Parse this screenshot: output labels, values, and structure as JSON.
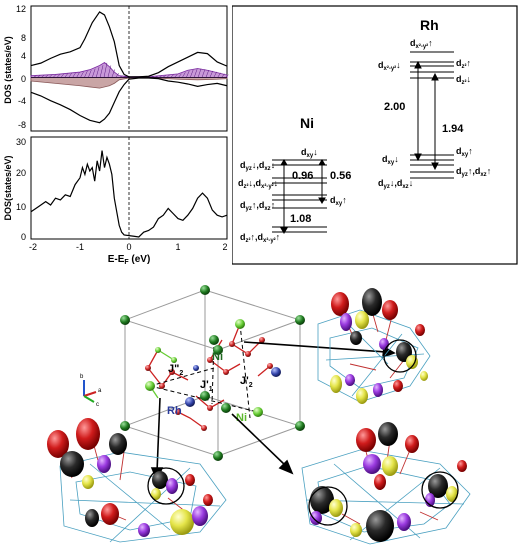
{
  "dos_top": {
    "ylabel": "DOS (states/eV)",
    "yticks": [
      "12",
      "8",
      "4",
      "0",
      "-4",
      "-8"
    ],
    "chart_data": {
      "type": "line",
      "x_range": [
        -2,
        2
      ],
      "y_range": [
        -9,
        12
      ],
      "series": [
        {
          "key": "total_up",
          "x": [
            -2,
            -1.8,
            -1.6,
            -1.4,
            -1.2,
            -1.0,
            -0.9,
            -0.75,
            -0.6,
            -0.5,
            -0.4,
            -0.3,
            -0.2,
            -0.1,
            0,
            0.2,
            0.4,
            0.6,
            0.8,
            1.0,
            1.2,
            1.4,
            1.6,
            1.8,
            2.0
          ],
          "y": [
            2.0,
            2.4,
            3.2,
            3.9,
            4.3,
            5.0,
            6.5,
            9.2,
            11.0,
            10.5,
            8.5,
            6.0,
            2.0,
            0.5,
            0.1,
            0.1,
            0.2,
            0.8,
            1.8,
            2.6,
            3.4,
            4.2,
            4.0,
            2.6,
            1.9
          ]
        },
        {
          "key": "total_down",
          "x": [
            -2,
            -1.8,
            -1.6,
            -1.4,
            -1.2,
            -1.0,
            -0.8,
            -0.6,
            -0.5,
            -0.4,
            -0.3,
            -0.2,
            -0.1,
            0,
            0.2,
            0.4,
            0.6,
            0.8,
            1.0,
            1.2,
            1.4,
            1.6,
            1.8,
            2.0
          ],
          "y": [
            -2.5,
            -3.1,
            -3.9,
            -4.6,
            -5.4,
            -6.4,
            -7.2,
            -7.6,
            -7.0,
            -6.0,
            -4.2,
            -2.4,
            -1.2,
            -0.3,
            -0.1,
            -0.1,
            -0.2,
            -0.6,
            -0.8,
            -1.1,
            -1.5,
            -1.2,
            -1.0,
            -1.4
          ]
        },
        {
          "key": "partial_up",
          "x": [
            -2,
            -1.5,
            -1.0,
            -0.8,
            -0.6,
            -0.5,
            -0.4,
            -0.3,
            -0.2,
            0,
            0.5,
            1.0,
            1.2,
            1.4,
            1.6,
            1.8,
            2.0
          ],
          "y": [
            0.3,
            0.5,
            0.9,
            1.3,
            2.0,
            2.5,
            1.8,
            0.9,
            0.3,
            0.1,
            0.2,
            0.6,
            1.2,
            1.5,
            1.2,
            0.8,
            0.4
          ]
        },
        {
          "key": "partial_down",
          "x": [
            -2,
            -1.5,
            -1.0,
            -0.8,
            -0.6,
            -0.4,
            -0.3,
            -0.2,
            0,
            0.5,
            1.0,
            1.4,
            1.8,
            2.0
          ],
          "y": [
            -0.6,
            -1.0,
            -1.4,
            -1.6,
            -1.8,
            -1.4,
            -1.0,
            -0.4,
            -0.1,
            -0.1,
            -0.3,
            -0.4,
            -0.3,
            -0.2
          ]
        }
      ]
    }
  },
  "dos_bottom": {
    "ylabel": "DOS(states/eV)",
    "xlabel_main": "E-E",
    "xlabel_sub": "F",
    "xlabel_unit": " (eV)",
    "yticks": [
      "30",
      "20",
      "10",
      "0"
    ],
    "xticks": [
      "-2",
      "-1",
      "0",
      "1",
      "2"
    ],
    "chart_data": {
      "type": "line",
      "x_range": [
        -2,
        2
      ],
      "y_range": [
        0,
        30
      ],
      "series": [
        {
          "key": "total",
          "x": [
            -2,
            -1.85,
            -1.7,
            -1.6,
            -1.5,
            -1.4,
            -1.3,
            -1.2,
            -1.1,
            -1.0,
            -0.95,
            -0.9,
            -0.85,
            -0.8,
            -0.75,
            -0.7,
            -0.65,
            -0.6,
            -0.55,
            -0.5,
            -0.45,
            -0.4,
            -0.35,
            -0.3,
            -0.25,
            -0.2,
            -0.15,
            -0.1,
            0,
            0.1,
            0.2,
            0.3,
            0.4,
            0.5,
            0.6,
            0.7,
            0.8,
            0.9,
            1.0,
            1.1,
            1.2,
            1.3,
            1.4,
            1.5,
            1.6,
            1.7,
            1.8,
            1.9,
            2.0
          ],
          "y": [
            8,
            9.5,
            11,
            10,
            12,
            11.5,
            13,
            12.5,
            16,
            18,
            21,
            19,
            22,
            20,
            21,
            17,
            23,
            20,
            26,
            21,
            24,
            22,
            19,
            12,
            8,
            4,
            2,
            1.2,
            1.0,
            0.8,
            0.6,
            2,
            2.5,
            3.5,
            6,
            7,
            9,
            7.5,
            6,
            5.5,
            7,
            9,
            12,
            13.5,
            12,
            8.5,
            7,
            6.5,
            7
          ]
        }
      ]
    }
  },
  "levels": {
    "ni_title": "Ni",
    "rh_title": "Rh",
    "labels": {
      "ni_dxy_dn": "d",
      "ni_dyz_dxz_dn": "d",
      "ni_dz2_dx2_dn": "d",
      "ni_dyz_dxz_up": "d",
      "ni_dxy_up": "d",
      "ni_dz2_dx2_up": "d",
      "rh_dx2y2_up": "d",
      "rh_dx2y2_dn": "d",
      "rh_dz2_up": "d",
      "rh_dz2_dn": "d",
      "rh_dxy_dn": "d",
      "rh_dxy_up": "d",
      "rh_dyz_dxz_up": "d",
      "rh_dyz_dxz_dn": "d"
    },
    "gaps": {
      "ni_a": "0.96",
      "ni_b": "0.56",
      "ni_c": "1.08",
      "rh_a": "2.00",
      "rh_b": "1.94"
    }
  },
  "structure": {
    "atom_labels": {
      "ni_a": "Ni",
      "ni_b": "Ni",
      "rh": "Rh"
    },
    "exchange_labels": {
      "j2pp": "J\"",
      "j1p": "J'",
      "j2p": "J'"
    },
    "exchange_subs": {
      "j2pp": "2",
      "j1p": "1",
      "j2p": "2"
    },
    "axes": {
      "b": "b",
      "a": "a",
      "c": "c"
    }
  },
  "colors": {
    "ni_dark": "#1f7a1f",
    "ni_light": "#66cc33",
    "rh": "#3344aa",
    "oxygen": "#cc2222",
    "orb_black": "#1a1a1a",
    "orb_red": "#cc1f1f",
    "orb_purple": "#8a2be2",
    "orb_yellow": "#e6e64d",
    "partial_fill": "#b06ec8",
    "down_fill": "#c9a5a5"
  }
}
